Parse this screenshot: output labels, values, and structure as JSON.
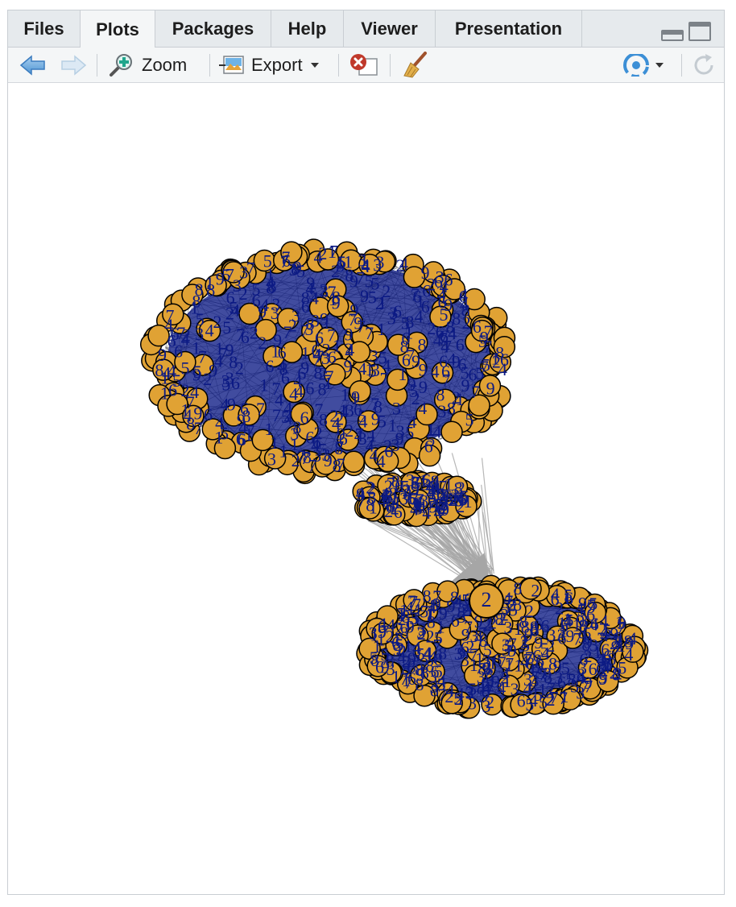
{
  "tabs": [
    {
      "label": "Files"
    },
    {
      "label": "Plots"
    },
    {
      "label": "Packages"
    },
    {
      "label": "Help"
    },
    {
      "label": "Viewer"
    },
    {
      "label": "Presentation"
    }
  ],
  "active_tab": "Plots",
  "toolbar": {
    "back_icon": "arrow-left-icon",
    "forward_icon": "arrow-right-icon",
    "zoom_label": "Zoom",
    "export_label": "Export",
    "remove_icon": "remove-plot-icon",
    "clear_icon": "broom-icon",
    "publish_icon": "publish-icon",
    "refresh_icon": "refresh-icon"
  },
  "plot": {
    "node_color": "#e0a234",
    "label_color": "#0c1a84",
    "edge_color": "#a6a6a6",
    "hub_label": "2"
  }
}
